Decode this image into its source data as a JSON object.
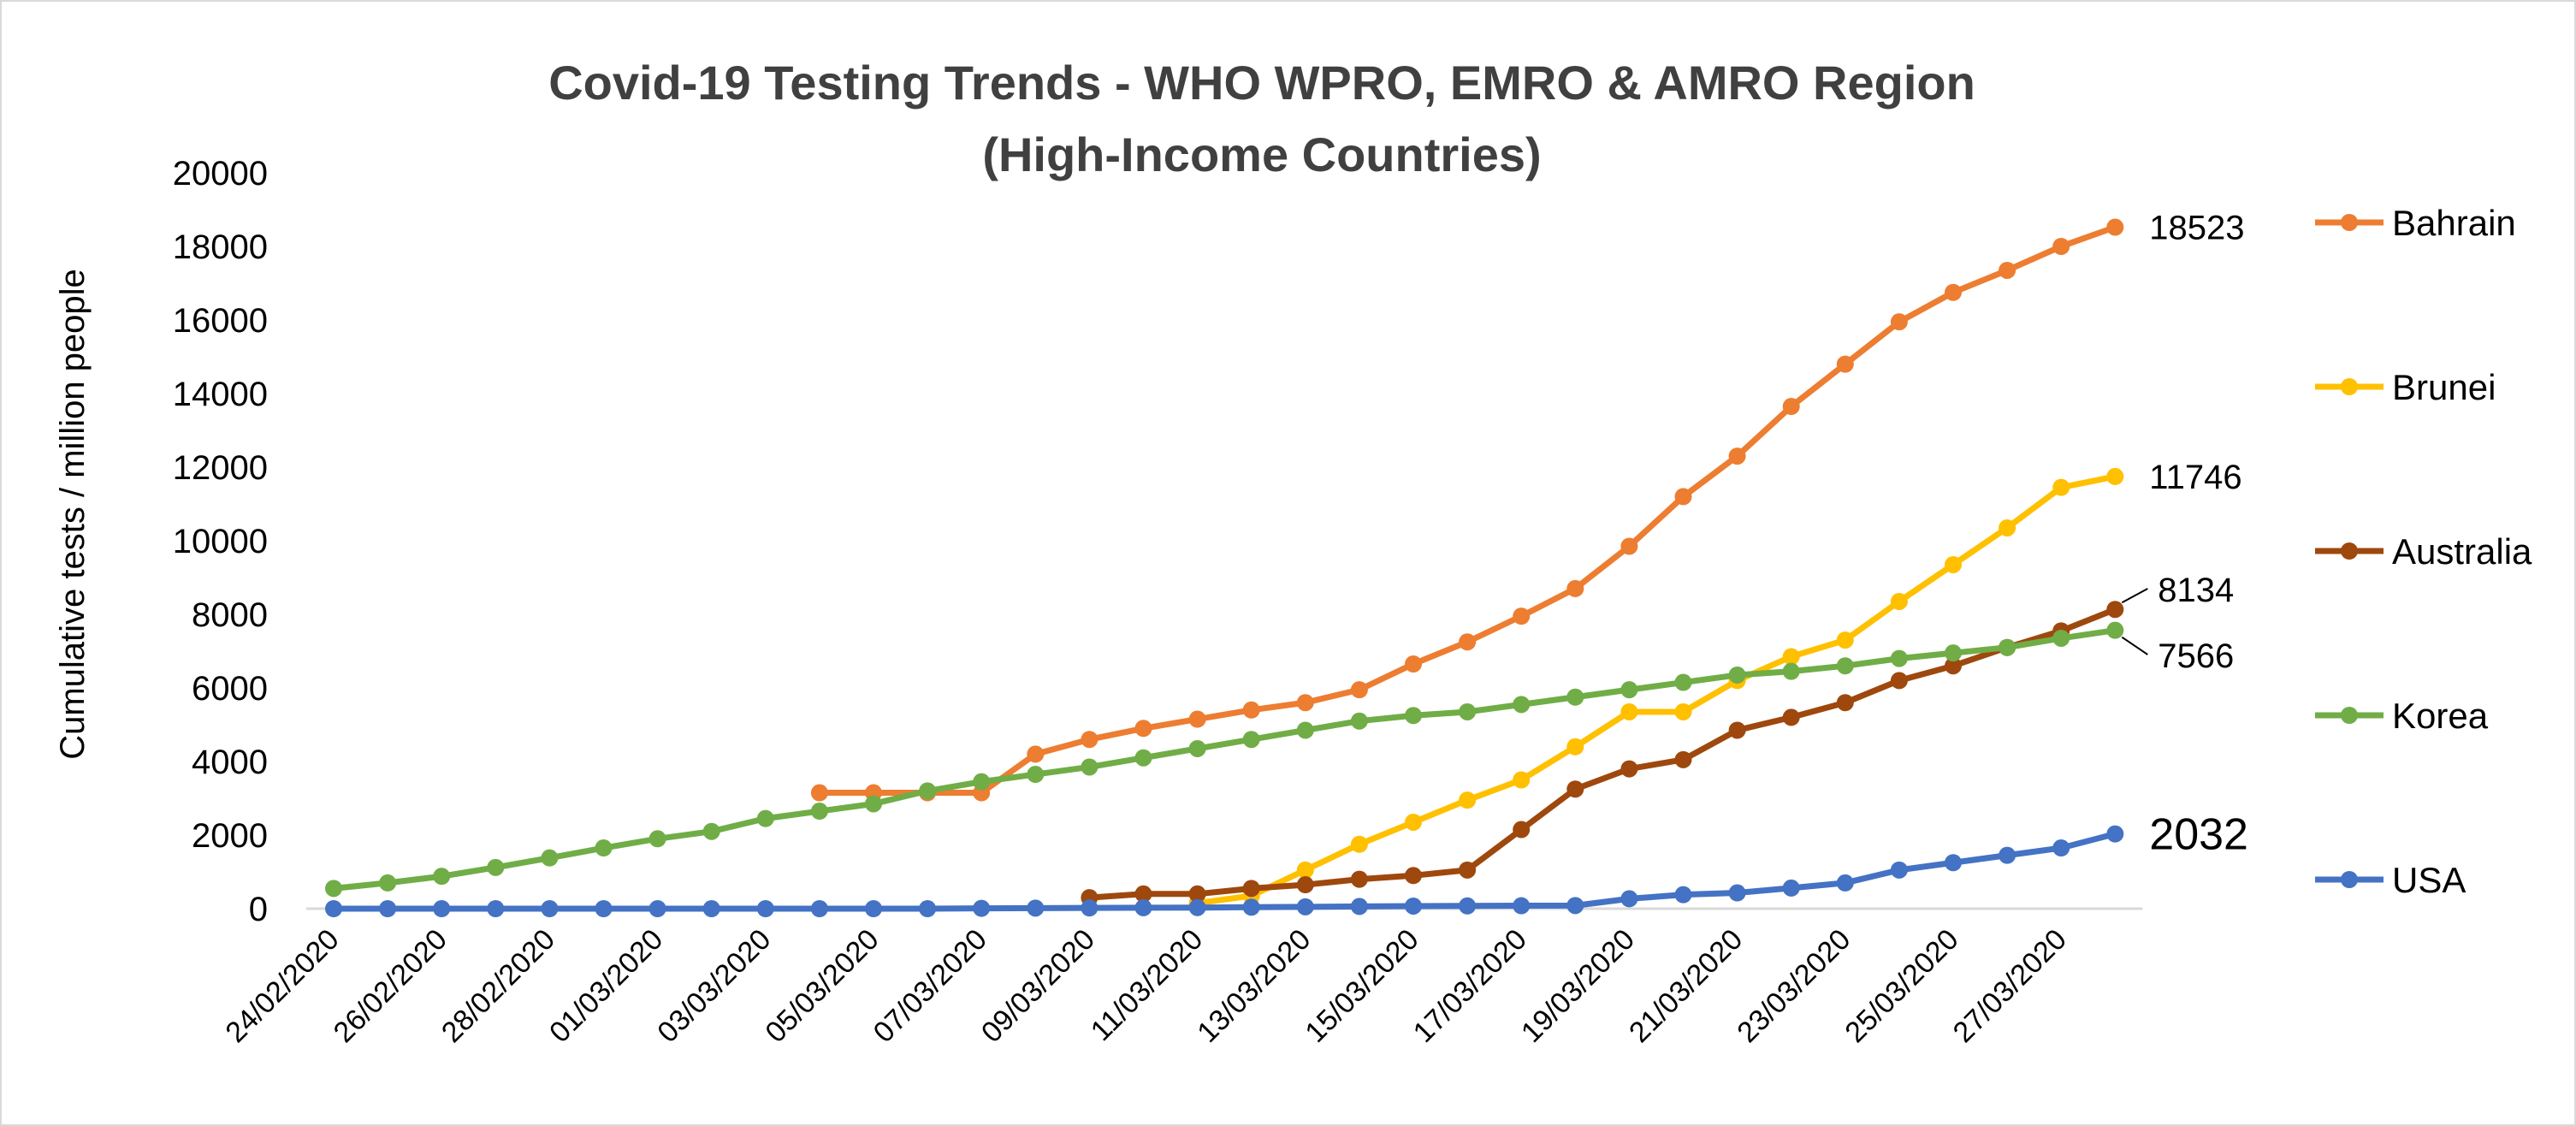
{
  "chart_data": {
    "type": "line",
    "title": [
      "Covid-19 Testing Trends -  WHO WPRO, EMRO & AMRO Region",
      "(High-Income Countries)"
    ],
    "xlabel": "",
    "ylabel": "Cumulative tests / million people",
    "ylim": [
      0,
      20000
    ],
    "yticks": [
      0,
      2000,
      4000,
      6000,
      8000,
      10000,
      12000,
      14000,
      16000,
      18000,
      20000
    ],
    "x": [
      "24/02/2020",
      "25/02/2020",
      "26/02/2020",
      "27/02/2020",
      "28/02/2020",
      "29/02/2020",
      "01/03/2020",
      "02/03/2020",
      "03/03/2020",
      "04/03/2020",
      "05/03/2020",
      "06/03/2020",
      "07/03/2020",
      "08/03/2020",
      "09/03/2020",
      "10/03/2020",
      "11/03/2020",
      "12/03/2020",
      "13/03/2020",
      "14/03/2020",
      "15/03/2020",
      "16/03/2020",
      "17/03/2020",
      "18/03/2020",
      "19/03/2020",
      "20/03/2020",
      "21/03/2020",
      "22/03/2020",
      "23/03/2020",
      "24/03/2020",
      "25/03/2020",
      "26/03/2020",
      "27/03/2020",
      "28/03/2020"
    ],
    "xtick_labels": [
      "24/02/2020",
      "26/02/2020",
      "28/02/2020",
      "01/03/2020",
      "03/03/2020",
      "05/03/2020",
      "07/03/2020",
      "09/03/2020",
      "11/03/2020",
      "13/03/2020",
      "15/03/2020",
      "17/03/2020",
      "19/03/2020",
      "21/03/2020",
      "23/03/2020",
      "25/03/2020",
      "27/03/2020"
    ],
    "grid": false,
    "legend_position": "right",
    "series": [
      {
        "name": "Bahrain",
        "color": "#ED7D31",
        "values": [
          null,
          null,
          null,
          null,
          null,
          null,
          null,
          null,
          null,
          3150,
          3150,
          3150,
          3150,
          4200,
          4600,
          4900,
          5150,
          5400,
          5600,
          5950,
          6650,
          7250,
          7950,
          8700,
          9850,
          11200,
          12300,
          13650,
          14800,
          15950,
          16750,
          17350,
          18000,
          18523
        ],
        "end_label": "18523"
      },
      {
        "name": "Brunei",
        "color": "#FFC000",
        "values": [
          null,
          null,
          null,
          null,
          null,
          null,
          null,
          null,
          null,
          null,
          null,
          null,
          null,
          null,
          null,
          null,
          150,
          350,
          1050,
          1750,
          2350,
          2950,
          3500,
          4400,
          5350,
          5350,
          6200,
          6850,
          7300,
          8350,
          9350,
          10350,
          11450,
          11746
        ],
        "end_label": "11746"
      },
      {
        "name": "Australia",
        "color": "#9E480E",
        "values": [
          null,
          null,
          null,
          null,
          null,
          null,
          null,
          null,
          null,
          null,
          null,
          null,
          null,
          null,
          300,
          400,
          400,
          550,
          650,
          800,
          900,
          1050,
          2150,
          3250,
          3800,
          4050,
          4850,
          5200,
          5600,
          6200,
          6600,
          7100,
          7550,
          8134
        ],
        "end_label": "8134"
      },
      {
        "name": "Korea",
        "color": "#70AD47",
        "values": [
          550,
          700,
          880,
          1120,
          1380,
          1650,
          1900,
          2100,
          2450,
          2650,
          2850,
          3200,
          3450,
          3650,
          3850,
          4100,
          4350,
          4600,
          4850,
          5100,
          5250,
          5350,
          5550,
          5750,
          5950,
          6150,
          6350,
          6450,
          6600,
          6800,
          6950,
          7100,
          7350,
          7566
        ],
        "end_label": "7566"
      },
      {
        "name": "USA",
        "color": "#4472C4",
        "values": [
          0,
          0,
          0,
          0,
          0,
          0,
          0,
          0,
          0,
          0,
          0,
          0,
          10,
          15,
          20,
          25,
          30,
          40,
          50,
          60,
          70,
          75,
          80,
          85,
          270,
          380,
          430,
          560,
          700,
          1050,
          1250,
          1450,
          1650,
          2032
        ],
        "end_label": "2032"
      }
    ]
  }
}
